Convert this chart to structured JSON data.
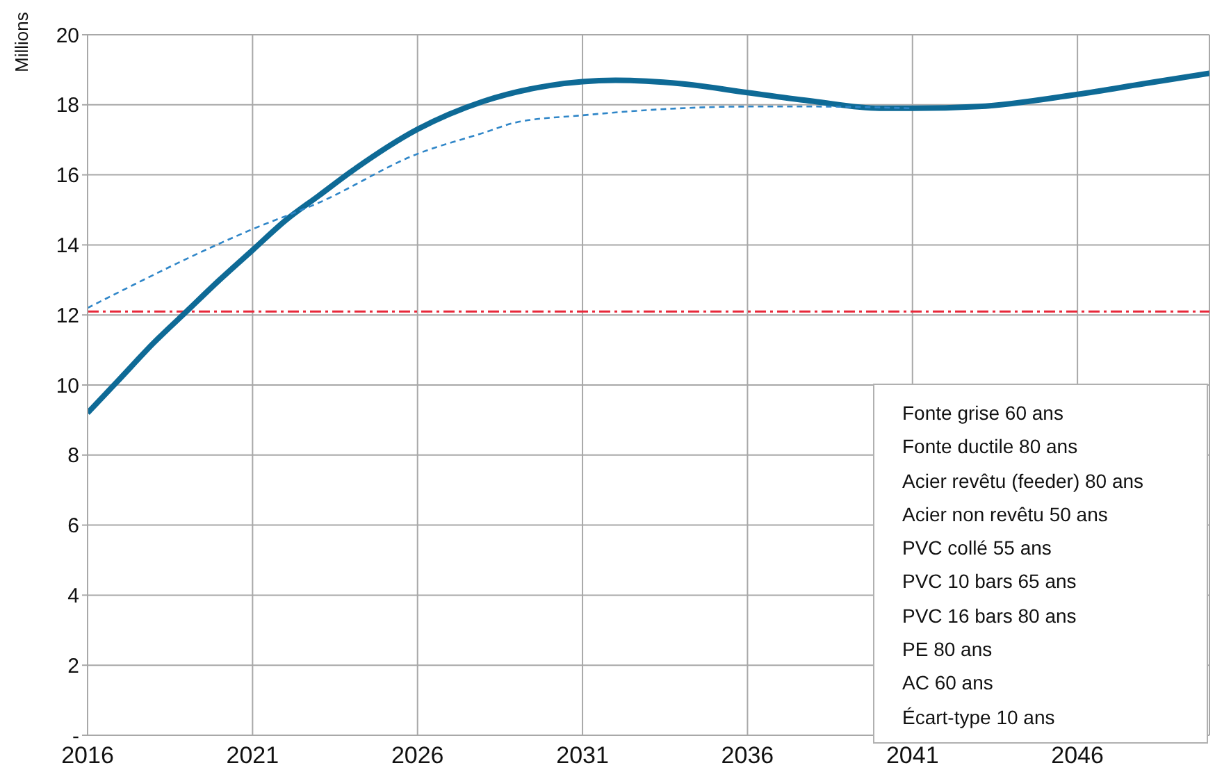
{
  "chart_data": {
    "type": "line",
    "ylabel": "Millions",
    "xlim": [
      2016,
      2050
    ],
    "xticks": [
      2016,
      2021,
      2026,
      2031,
      2036,
      2041,
      2046
    ],
    "ylim": [
      0,
      20
    ],
    "yticks": [
      {
        "value": 0,
        "label": "-"
      },
      2,
      4,
      6,
      8,
      10,
      12,
      14,
      16,
      18,
      20
    ],
    "grid": true,
    "marker": "none",
    "series": [
      {
        "color": "#0e6a96",
        "line_style": "solid",
        "x": [
          2016,
          2017,
          2018,
          2019,
          2020,
          2021,
          2022,
          2023,
          2024,
          2026,
          2028,
          2030,
          2032,
          2034,
          2036,
          2038,
          2040,
          2041,
          2043,
          2046,
          2048,
          2050
        ],
        "values": [
          9.2,
          10.2,
          11.2,
          12.1,
          13.0,
          13.85,
          14.7,
          15.4,
          16.1,
          17.3,
          18.1,
          18.55,
          18.7,
          18.6,
          18.35,
          18.1,
          17.9,
          17.9,
          17.95,
          18.3,
          18.6,
          18.9
        ]
      },
      {
        "color": "#2f86c8",
        "line_style": "dashed",
        "x": [
          2016,
          2021,
          2023,
          2026,
          2028,
          2029,
          2031,
          2033,
          2036,
          2038,
          2041
        ],
        "values": [
          12.2,
          14.45,
          15.2,
          16.6,
          17.2,
          17.5,
          17.7,
          17.85,
          17.95,
          17.95,
          17.9
        ]
      }
    ],
    "ref_lines": [
      {
        "axis": "y",
        "value": 12.1,
        "color": "#e8283a",
        "line_style": "dashdot"
      }
    ],
    "annotations": [
      "Fonte grise 60 ans",
      "Fonte ductile 80 ans",
      "Acier revêtu (feeder) 80 ans",
      "Acier non revêtu 50 ans",
      "PVC collé 55 ans",
      "PVC 10 bars 65 ans",
      "PVC 16 bars 80 ans",
      "PE 80 ans",
      "AC 60 ans",
      "Écart-type 10 ans"
    ]
  }
}
